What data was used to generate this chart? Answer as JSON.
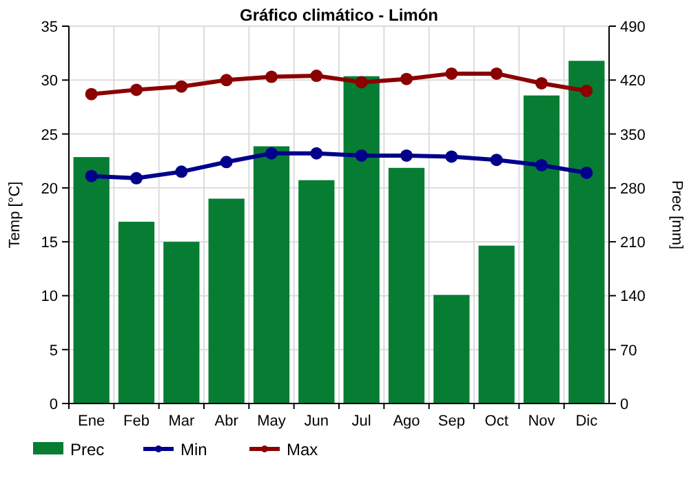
{
  "chart_data": {
    "type": "bar",
    "title": "Gráfico climático - Limón",
    "ylabel": "Temp [°C]",
    "y2label": "Prec [mm]",
    "categories": [
      "Ene",
      "Feb",
      "Mar",
      "Abr",
      "May",
      "Jun",
      "Jul",
      "Ago",
      "Sep",
      "Oct",
      "Nov",
      "Dic"
    ],
    "series": [
      {
        "name": "Prec",
        "axis": "y2",
        "color": "#067d33",
        "values": [
          320,
          236,
          210,
          266,
          334,
          290,
          425,
          306,
          141,
          205,
          400,
          445
        ]
      },
      {
        "name": "Min",
        "type": "line",
        "axis": "y",
        "color": "#00008b",
        "values": [
          21.1,
          20.9,
          21.5,
          22.4,
          23.2,
          23.2,
          23.0,
          23.0,
          22.9,
          22.6,
          22.1,
          21.4
        ]
      },
      {
        "name": "Max",
        "type": "line",
        "axis": "y",
        "color": "#8b0000",
        "values": [
          28.7,
          29.1,
          29.4,
          30.0,
          30.3,
          30.4,
          29.8,
          30.1,
          30.6,
          30.6,
          29.7,
          29.0
        ]
      }
    ],
    "ylim": [
      0,
      35
    ],
    "yticks": [
      0,
      5,
      10,
      15,
      20,
      25,
      30,
      35
    ],
    "y2lim": [
      0,
      490
    ],
    "y2ticks": [
      0,
      70,
      140,
      210,
      280,
      350,
      420,
      490
    ],
    "grid": true,
    "legend": "bottom left",
    "marker": "circle"
  }
}
